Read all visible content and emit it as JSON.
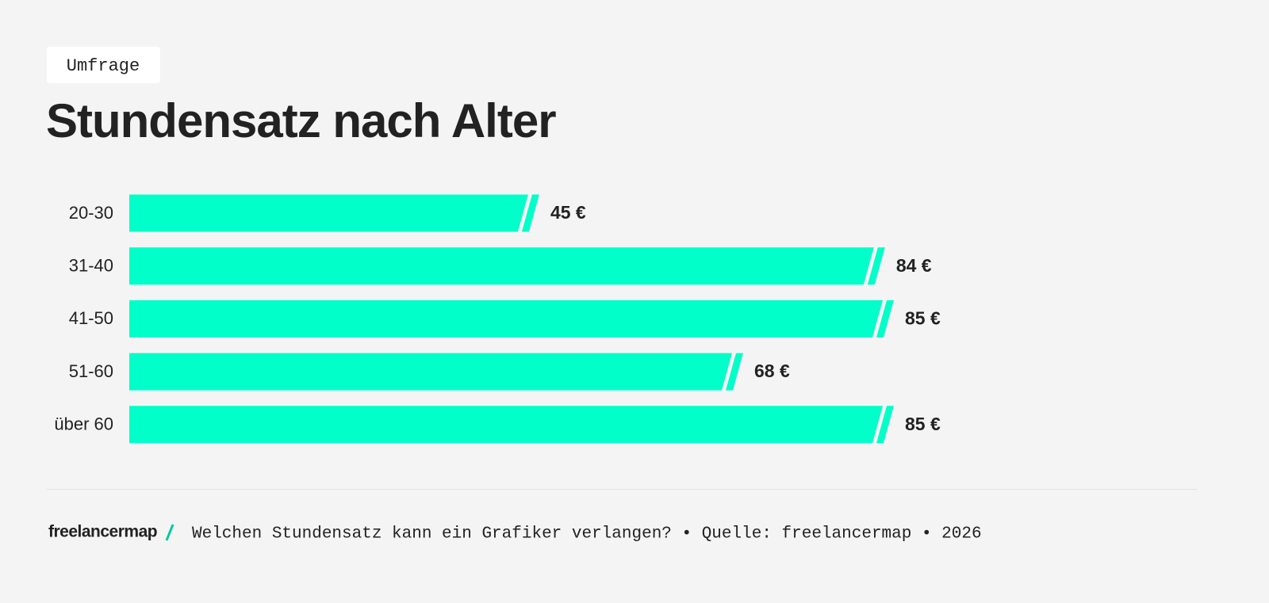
{
  "tag": "Umfrage",
  "chart_data": {
    "type": "bar",
    "orientation": "horizontal",
    "title": "Stundensatz nach Alter",
    "categories": [
      "20-30",
      "31-40",
      "41-50",
      "51-60",
      "über 60"
    ],
    "values": [
      45,
      84,
      85,
      68,
      85
    ],
    "value_labels": [
      "45 €",
      "84 €",
      "85 €",
      "68 €",
      "85 €"
    ],
    "color": "#00ffc9"
  },
  "footer": {
    "logo": "freelancermap",
    "text": "Welchen Stundensatz kann ein Grafiker verlangen? • Quelle: freelancermap • 2026"
  }
}
